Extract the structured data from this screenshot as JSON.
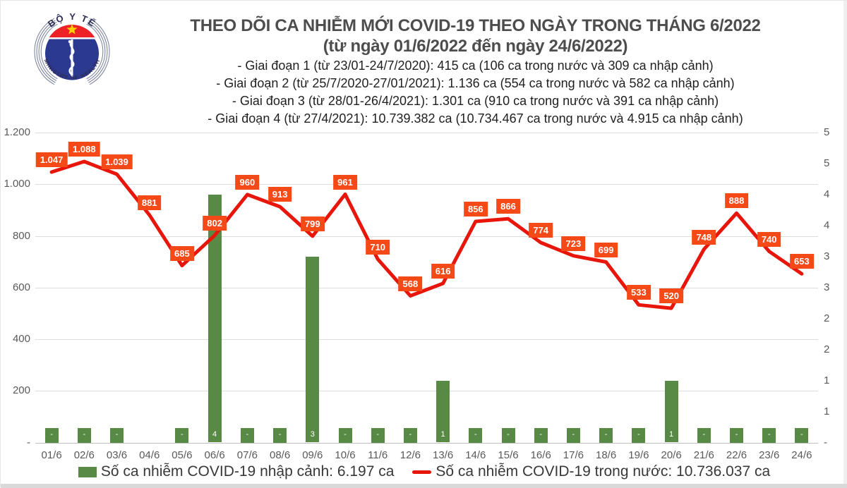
{
  "logo": {
    "top_text": "BỘ Y TẾ",
    "bottom_text": "MINISTRY OF HEALTH"
  },
  "header": {
    "title": "THEO DÕI CA NHIỄM MỚI COVID-19 THEO NGÀY TRONG THÁNG 6/2022",
    "subtitle": "(từ ngày 01/6/2022 đến ngày 24/6/2022)",
    "notes": [
      "- Giai đoạn 1 (từ 23/01-24/7/2020): 415 ca (106 ca trong nước và 309 ca nhập cảnh)",
      "- Giai đoạn 2 (từ 25/7/2020-27/01/2021): 1.136 ca (554 ca trong nước và 582 ca nhập cảnh)",
      "- Giai đoạn 3 (từ 28/01-26/4/2021): 1.301 ca (910 ca trong nước và 391 ca nhập cảnh)",
      "- Giai đoạn 4 (từ 27/4/2021): 10.739.382 ca (10.734.467 ca trong nước và 4.915 ca nhập cảnh)"
    ]
  },
  "chart_data": {
    "type": "combo",
    "categories": [
      "01/6",
      "02/6",
      "03/6",
      "04/6",
      "05/6",
      "06/6",
      "07/6",
      "08/6",
      "09/6",
      "10/6",
      "11/6",
      "12/6",
      "13/6",
      "14/6",
      "15/6",
      "16/6",
      "17/6",
      "18/6",
      "19/6",
      "20/6",
      "21/6",
      "22/6",
      "23/6",
      "24/6"
    ],
    "line_series": {
      "name": "Số ca nhiễm COVID-19 trong nước",
      "axis": "left",
      "color": "#e8150b",
      "label_bg": "#f54a18",
      "values": [
        1047,
        1088,
        1039,
        881,
        685,
        802,
        960,
        913,
        799,
        961,
        710,
        568,
        616,
        856,
        866,
        774,
        723,
        699,
        533,
        520,
        748,
        888,
        740,
        653
      ],
      "labels": [
        "1.047",
        "1.088",
        "1.039",
        "881",
        "685",
        "802",
        "960",
        "913",
        "799",
        "961",
        "710",
        "568",
        "616",
        "856",
        "866",
        "774",
        "723",
        "699",
        "533",
        "520",
        "748",
        "888",
        "740",
        "653"
      ]
    },
    "bar_series": {
      "name": "Số ca nhiễm COVID-19 nhập cảnh",
      "axis": "right",
      "color": "#588945",
      "values": [
        0,
        0,
        0,
        null,
        0,
        4,
        0,
        0,
        3,
        0,
        0,
        0,
        1,
        0,
        0,
        0,
        0,
        0,
        0,
        1,
        0,
        0,
        0,
        0
      ],
      "labels": [
        "-",
        "-",
        "-",
        null,
        "-",
        "4",
        "-",
        "-",
        "3",
        "-",
        "-",
        "-",
        "1",
        "-",
        "-",
        "-",
        "-",
        "-",
        "-",
        "1",
        "-",
        "-",
        "-",
        "-"
      ]
    },
    "left_axis": {
      "min": 0,
      "max": 1200,
      "ticks": [
        "1.200",
        "1.000",
        "800",
        "600",
        "400",
        "200",
        "-"
      ]
    },
    "right_axis": {
      "min": 0,
      "max": 5,
      "ticks": [
        "5",
        "5",
        "4",
        "4",
        "3",
        "3",
        "2",
        "2",
        "1",
        "1",
        "-"
      ]
    },
    "grid": true,
    "legend_position": "bottom"
  },
  "legend": {
    "items": [
      {
        "swatch": "bar",
        "color": "#588945",
        "label": "Số ca nhiễm COVID-19 nhập cảnh: 6.197 ca"
      },
      {
        "swatch": "line",
        "color": "#e8150b",
        "label": "Số ca nhiễm COVID-19 trong nước: 10.736.037 ca"
      }
    ]
  }
}
